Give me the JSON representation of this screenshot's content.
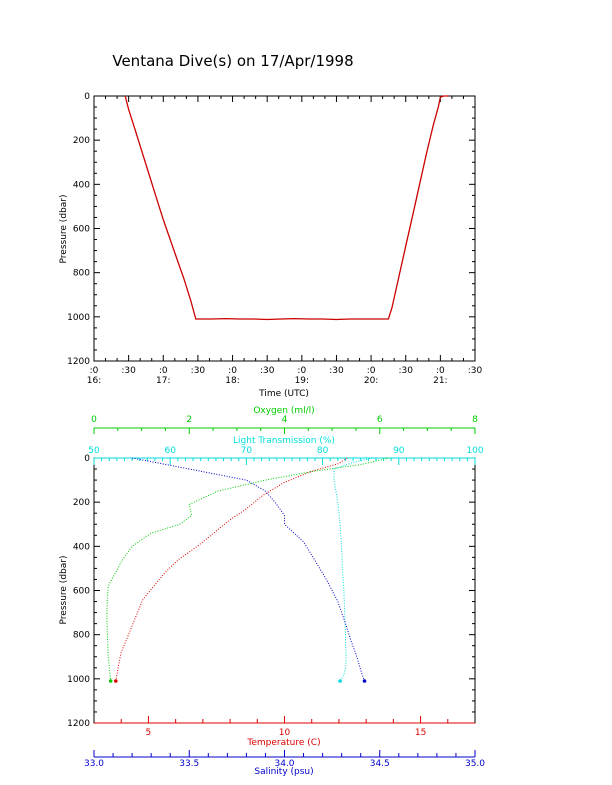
{
  "page_title": "Ventana Dive(s) on 17/Apr/1998",
  "colors": {
    "axis": "#000000",
    "time_trace": "#cc0000",
    "temperature": "#dd0000",
    "oxygen": "#00cc00",
    "light_transmission": "#00dddd",
    "salinity": "#0000cc"
  },
  "chart_data": [
    {
      "type": "line",
      "title": "Ventana Dive(s) on 17/Apr/1998",
      "xlabel": "Time (UTC)",
      "ylabel": "Pressure (dbar)",
      "xlim": [
        16.0,
        21.5
      ],
      "ylim": [
        1200,
        0
      ],
      "y_ticks": [
        "0",
        "200",
        "400",
        "600",
        "800",
        "1000",
        "1200"
      ],
      "x_ticks": [
        {
          "line1": ":0",
          "line2": "16:"
        },
        {
          "line1": ":30",
          "line2": ""
        },
        {
          "line1": ":0",
          "line2": "17:"
        },
        {
          "line1": ":30",
          "line2": ""
        },
        {
          "line1": ":0",
          "line2": "18:"
        },
        {
          "line1": ":30",
          "line2": ""
        },
        {
          "line1": ":0",
          "line2": "19:"
        },
        {
          "line1": ":30",
          "line2": ""
        },
        {
          "line1": ":0",
          "line2": "20:"
        },
        {
          "line1": ":30",
          "line2": ""
        },
        {
          "line1": ":0",
          "line2": "21:"
        },
        {
          "line1": ":30",
          "line2": ""
        }
      ],
      "grid": false,
      "series": [
        {
          "x": [
            16.45,
            16.5,
            16.6,
            16.7,
            16.8,
            16.9,
            17.0,
            17.1,
            17.2,
            17.3,
            17.4,
            17.47,
            17.5,
            17.7,
            17.9,
            18.1,
            18.3,
            18.5,
            18.7,
            18.9,
            19.1,
            19.3,
            19.5,
            19.7,
            19.9,
            20.1,
            20.25,
            20.3,
            20.4,
            20.5,
            20.6,
            20.7,
            20.8,
            20.9,
            20.97,
            21.0,
            21.05,
            21.12
          ],
          "y": [
            0,
            60,
            160,
            260,
            360,
            460,
            560,
            650,
            740,
            830,
            930,
            1010,
            1010,
            1010,
            1008,
            1010,
            1010,
            1012,
            1010,
            1008,
            1010,
            1010,
            1012,
            1010,
            1010,
            1010,
            1010,
            960,
            820,
            680,
            540,
            400,
            260,
            130,
            50,
            5,
            0,
            0
          ]
        }
      ]
    },
    {
      "type": "scatter",
      "ylabel": "Pressure (dbar)",
      "ylim": [
        1200,
        0
      ],
      "y_ticks": [
        "0",
        "200",
        "400",
        "600",
        "800",
        "1000",
        "1200"
      ],
      "grid": false,
      "axes": {
        "oxygen": {
          "label": "Oxygen (ml/l)",
          "lim": [
            0,
            8
          ],
          "ticks": [
            "0",
            "2",
            "4",
            "6",
            "8"
          ]
        },
        "light_transmission": {
          "label": "Light Transmission (%)",
          "lim": [
            50,
            100
          ],
          "ticks": [
            "50",
            "60",
            "70",
            "80",
            "90",
            "100"
          ]
        },
        "temperature": {
          "label": "Temperature (C)",
          "lim": [
            3,
            17
          ],
          "ticks": [
            "5",
            "10",
            "15"
          ]
        },
        "salinity": {
          "label": "Salinity (psu)",
          "lim": [
            33.0,
            35.0
          ],
          "ticks": [
            "33.0",
            "33.5",
            "34.0",
            "34.5",
            "35.0"
          ]
        }
      },
      "series": [
        {
          "name": "Temperature (C)",
          "axis": "temperature",
          "values": [
            12.3,
            12.0,
            11.0,
            10.0,
            9.2,
            8.6,
            8.0,
            7.4,
            6.8,
            6.1,
            5.6,
            5.2,
            4.8,
            4.6,
            4.4,
            4.2,
            4.0,
            3.9,
            3.8
          ],
          "pressure": [
            0,
            25,
            60,
            110,
            170,
            230,
            280,
            340,
            400,
            460,
            520,
            580,
            640,
            700,
            760,
            820,
            880,
            940,
            1010
          ]
        },
        {
          "name": "Oxygen (ml/l)",
          "axis": "oxygen",
          "values": [
            6.2,
            5.6,
            4.6,
            3.6,
            2.6,
            2.0,
            2.05,
            1.8,
            1.2,
            0.8,
            0.6,
            0.45,
            0.3,
            0.28,
            0.27,
            0.28,
            0.3,
            0.35
          ],
          "pressure": [
            0,
            30,
            60,
            100,
            150,
            210,
            260,
            300,
            340,
            400,
            460,
            520,
            580,
            640,
            720,
            800,
            900,
            1010
          ]
        },
        {
          "name": "Light Transmission (%)",
          "axis": "light_transmission",
          "values": [
            86.5,
            84.0,
            81.5,
            81.5,
            82.0,
            82.3,
            82.5,
            82.6,
            82.8,
            82.9,
            83.0,
            83.0,
            83.1,
            83.0,
            82.8,
            82.5,
            82.3
          ],
          "pressure": [
            0,
            20,
            50,
            100,
            200,
            300,
            400,
            500,
            600,
            700,
            800,
            850,
            900,
            950,
            980,
            1000,
            1010
          ]
        },
        {
          "name": "Salinity (psu)",
          "axis": "salinity",
          "values": [
            33.2,
            33.5,
            33.8,
            33.9,
            33.95,
            34.0,
            34.0,
            34.1,
            34.15,
            34.22,
            34.28,
            34.32,
            34.35,
            34.38,
            34.4,
            34.42
          ],
          "pressure": [
            0,
            50,
            100,
            150,
            200,
            260,
            300,
            380,
            450,
            550,
            650,
            750,
            830,
            900,
            960,
            1010
          ]
        }
      ]
    }
  ]
}
